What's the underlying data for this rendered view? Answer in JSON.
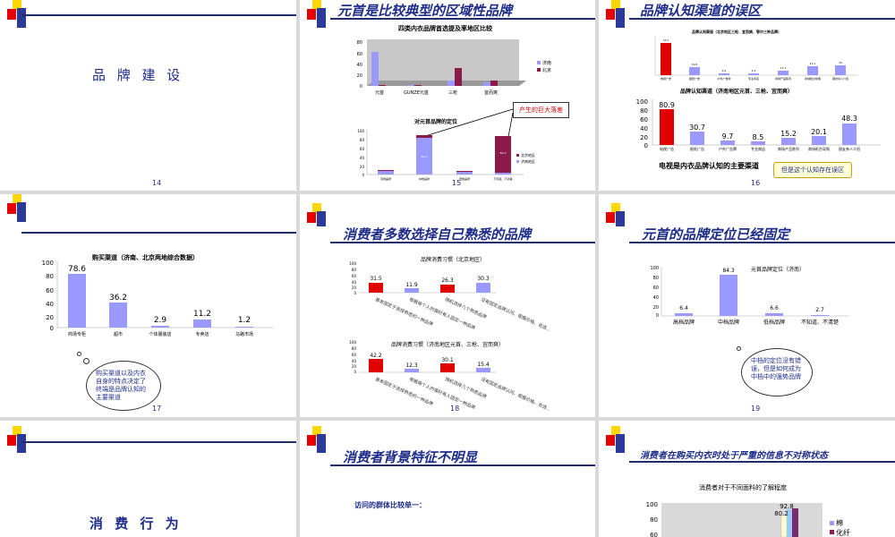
{
  "slides": {
    "s14": {
      "title": "品 牌 建 设",
      "page": "14"
    },
    "s15": {
      "title": "元首是比较典型的区域性品牌",
      "page": "15",
      "chart1_title": "四类内衣品牌首选提及率地区比较",
      "chart1_yticks": [
        "80",
        "60",
        "40",
        "20",
        "0"
      ],
      "chart1_cats": [
        "元首",
        "GUNZE元首",
        "三枪",
        "宜而爽"
      ],
      "chart1_legend": [
        "济南",
        "北京"
      ],
      "callout": "产生的巨大落差",
      "chart2_title": "对元首品牌的定位",
      "chart2_yticks": [
        "100",
        "80",
        "60",
        "40",
        "20",
        "0"
      ],
      "chart2_cats": [
        "高档品牌",
        "中档品牌",
        "低档品牌",
        "不知道、不清楚"
      ],
      "chart2_legend": [
        "北京地区",
        "济南地区"
      ],
      "chart2_seg_label_1": "84.3",
      "chart2_seg_label_2": "80.3"
    },
    "s16": {
      "title": "品牌认知渠道的误区",
      "page": "16",
      "chart1_title": "品牌认知渠道（北京地区三枪、宜而爽、鄂尔三种品牌）",
      "chart1_values": [
        "79.7",
        "19.6",
        "4.9",
        "4.3",
        "11.7",
        "21.1",
        "23"
      ],
      "chart1_cats": [
        "电视广告",
        "报纸广告",
        "户外广告牌",
        "专业商店",
        "商场产品陈列",
        "商城柜台导购",
        "朋友亲人介绍"
      ],
      "chart2_title": "品牌认知渠道（济南地区元首、三枪、宜而爽）",
      "chart2_yticks": [
        "100",
        "80",
        "60",
        "40",
        "20",
        "0"
      ],
      "chart2_values": [
        "80.9",
        "30.7",
        "9.7",
        "8.5",
        "15.2",
        "20.1",
        "48.3"
      ],
      "chart2_cats": [
        "电视广告",
        "报纸广告",
        "户外广告牌",
        "专业商店",
        "商场产品陈列",
        "商场柜台导购",
        "朋友亲人介绍"
      ],
      "main_text": "电视是内衣品牌认知的主要渠道",
      "box": "但是这个认知存在误区"
    },
    "s17": {
      "page": "17",
      "chart_title": "购买渠道（济南、北京两地综合数据）",
      "yticks": [
        "100",
        "80",
        "60",
        "40",
        "20",
        "0"
      ],
      "values": [
        "78.6",
        "36.2",
        "2.9",
        "11.2",
        "1.2"
      ],
      "cats": [
        "商场专柜",
        "超市",
        "个体服装店",
        "专卖店",
        "马路市场"
      ],
      "bubble": "购买渠道以及内衣自身的特点决定了终端是品牌认知的主要渠道"
    },
    "s18": {
      "title": "消费者多数选择自己熟悉的品牌",
      "page": "18",
      "chart1_title": "品牌消费习惯（北京地区）",
      "chart1_yticks": [
        "100",
        "80",
        "60",
        "40",
        "20",
        "0"
      ],
      "chart1_values": [
        "31.5",
        "11.9",
        "26.3",
        "30.3"
      ],
      "chart2_title": "品牌消费习惯（济南地区元首、三枪、宜而爽）",
      "chart2_yticks": [
        "100",
        "80",
        "60",
        "40",
        "20",
        "0"
      ],
      "chart2_values": [
        "42.2",
        "12.3",
        "30.1",
        "15.4"
      ],
      "cats": [
        "基本固定于选择熟悉的一种品牌",
        "根据每个人的偏好有人固定一种品牌",
        "随机选择几个熟悉品牌",
        "没有固定品牌认同、根据价格、合适…"
      ]
    },
    "s19": {
      "title": "元首的品牌定位已经固定",
      "page": "19",
      "chart_title": "元首品牌定位（济南）",
      "yticks": [
        "100",
        "80",
        "60",
        "40",
        "20",
        "0"
      ],
      "values": [
        "6.4",
        "84.3",
        "6.6",
        "2.7"
      ],
      "cats": [
        "高档品牌",
        "中档品牌",
        "低档品牌",
        "不知道、不清楚"
      ],
      "bubble": "中档的定位没有错误，但是如何成为中档中的强势品牌"
    },
    "s20": {
      "title": "消 费 行 为"
    },
    "s21": {
      "title": "消费者背景特征不明显",
      "subtext": "访问的群体比较单一："
    },
    "s22": {
      "title": "消费者在购买内衣时处于严重的信息不对称状态",
      "chart_title": "消费者对于不同面料的了解程度",
      "yticks": [
        "100",
        "80",
        "60"
      ],
      "values": [
        "92.8",
        "80.2"
      ],
      "legend": [
        "棉",
        "化纤"
      ]
    }
  },
  "colors": {
    "navy": "#1e2c8a",
    "red": "#e00000",
    "lavender": "#9999ff",
    "maroon": "#8b1a4a",
    "yellow": "#ffd700"
  }
}
